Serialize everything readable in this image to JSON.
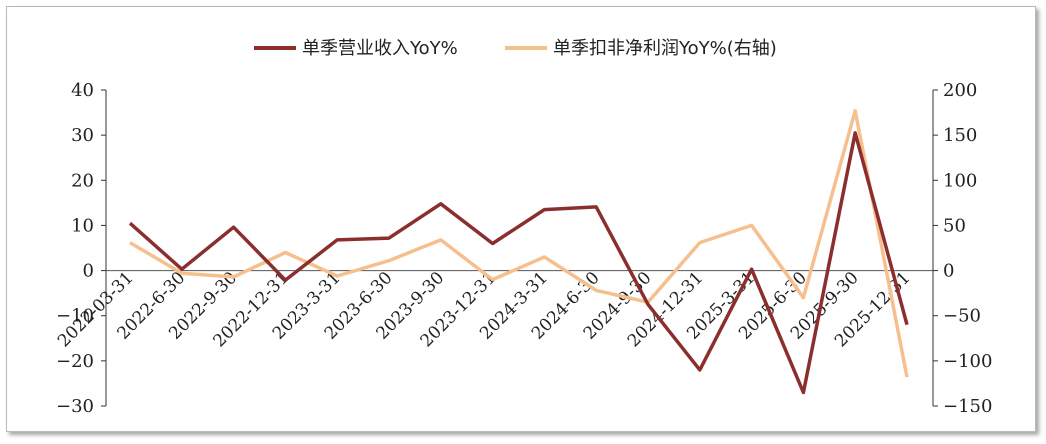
{
  "chart_data": {
    "type": "line",
    "title": "",
    "categories": [
      "2022-03-31",
      "2022-6-30",
      "2022-9-30",
      "2022-12-31",
      "2023-3-31",
      "2023-6-30",
      "2023-9-30",
      "2023-12-31",
      "2024-3-31",
      "2024-6-30",
      "2024-9-30",
      "2024-12-31",
      "2025-3-31",
      "2025-6-30",
      "2025-9-30",
      "2025-12-31"
    ],
    "series": [
      {
        "name": "单季营业收入YoY%",
        "axis": "left",
        "color": "#8b2e2e",
        "values": [
          10.5,
          0.3,
          9.6,
          -2.1,
          6.8,
          7.2,
          14.8,
          6.0,
          13.5,
          14.1,
          -7.5,
          -22.0,
          0.3,
          -27.0,
          30.5,
          -12.0
        ]
      },
      {
        "name": "单季扣非净利润YoY%(右轴)",
        "axis": "right",
        "color": "#f6c08e",
        "values": [
          31,
          -3,
          -7,
          20,
          -6,
          11,
          34,
          -10,
          15,
          -22,
          -35,
          31,
          50,
          -30,
          177,
          -118
        ]
      }
    ],
    "y_left": {
      "lim": [
        -30,
        40
      ],
      "ticks": [
        40,
        30,
        20,
        10,
        0,
        -10,
        -20,
        -30
      ]
    },
    "y_right": {
      "lim": [
        -150,
        200
      ],
      "ticks": [
        200,
        150,
        100,
        50,
        0,
        -50,
        -100,
        -150
      ]
    },
    "grid": false,
    "legend": "top-center"
  }
}
